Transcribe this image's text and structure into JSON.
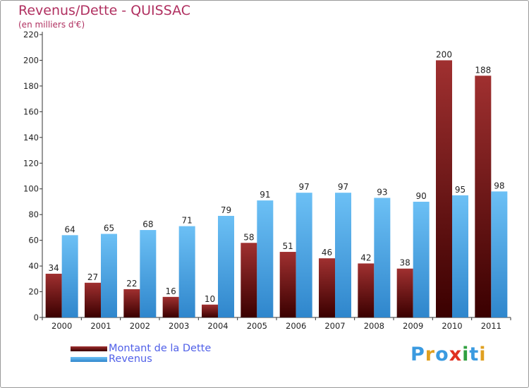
{
  "chart_data": {
    "type": "bar",
    "title": "Revenus/Dette - QUISSAC",
    "subtitle": "(en milliers d'€)",
    "categories": [
      "2000",
      "2001",
      "2002",
      "2003",
      "2004",
      "2005",
      "2006",
      "2007",
      "2008",
      "2009",
      "2010",
      "2011"
    ],
    "series": [
      {
        "name": "Montant de la Dette",
        "color": "#7a1a1a",
        "values": [
          34,
          27,
          22,
          16,
          10,
          58,
          51,
          46,
          42,
          38,
          200,
          188
        ]
      },
      {
        "name": "Revenus",
        "color": "#4aa3e6",
        "values": [
          64,
          65,
          68,
          71,
          79,
          91,
          97,
          97,
          93,
          90,
          95,
          98
        ]
      }
    ],
    "ylim": [
      0,
      220
    ],
    "yticks": [
      0,
      20,
      40,
      60,
      80,
      100,
      120,
      140,
      160,
      180,
      200,
      220
    ],
    "grid": false,
    "legend_position": "bottom-left",
    "data_labels": true
  },
  "logo": {
    "text": "Proxiti",
    "letters": [
      "P",
      "r",
      "o",
      "x",
      "i",
      "t",
      "i"
    ],
    "colors": [
      "#3a9ae0",
      "#e0a020",
      "#3a9ae0",
      "#e03020",
      "#30a040",
      "#3a9ae0",
      "#e0a020"
    ]
  }
}
